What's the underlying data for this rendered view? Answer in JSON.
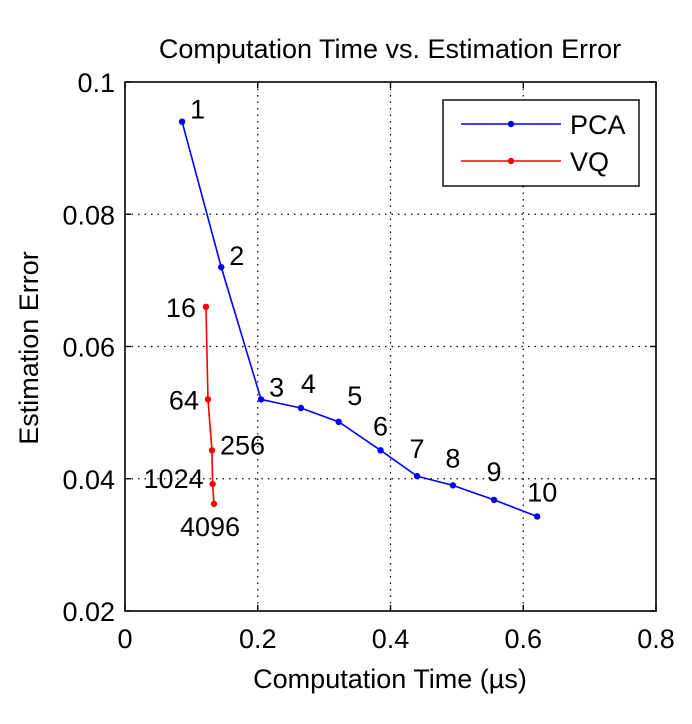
{
  "chart_data": {
    "type": "line",
    "title": "Computation Time vs. Estimation Error",
    "xlabel": "Computation Time (µs)",
    "ylabel": "Estimation Error",
    "xlim": [
      0,
      0.8
    ],
    "ylim": [
      0.02,
      0.1
    ],
    "xticks": [
      "0",
      "0.2",
      "0.4",
      "0.6",
      "0.8"
    ],
    "yticks": [
      "0.02",
      "0.04",
      "0.06",
      "0.08",
      "0.1"
    ],
    "grid": true,
    "legend_position": "top-right",
    "series": [
      {
        "name": "PCA",
        "color": "#0000ff",
        "points": [
          {
            "x": 0.086,
            "y": 0.094,
            "label": "1"
          },
          {
            "x": 0.145,
            "y": 0.072,
            "label": "2"
          },
          {
            "x": 0.205,
            "y": 0.052,
            "label": "3"
          },
          {
            "x": 0.265,
            "y": 0.0507,
            "label": "4"
          },
          {
            "x": 0.322,
            "y": 0.0486,
            "label": "5"
          },
          {
            "x": 0.385,
            "y": 0.0443,
            "label": "6"
          },
          {
            "x": 0.44,
            "y": 0.0404,
            "label": "7"
          },
          {
            "x": 0.494,
            "y": 0.039,
            "label": "8"
          },
          {
            "x": 0.556,
            "y": 0.0368,
            "label": "9"
          },
          {
            "x": 0.621,
            "y": 0.0343,
            "label": "10"
          }
        ]
      },
      {
        "name": "VQ",
        "color": "#ff0000",
        "points": [
          {
            "x": 0.122,
            "y": 0.066,
            "label": "16"
          },
          {
            "x": 0.125,
            "y": 0.052,
            "label": "64"
          },
          {
            "x": 0.131,
            "y": 0.0443,
            "label": "256"
          },
          {
            "x": 0.132,
            "y": 0.0392,
            "label": "1024"
          },
          {
            "x": 0.134,
            "y": 0.0362,
            "label": "4096"
          }
        ]
      }
    ]
  }
}
